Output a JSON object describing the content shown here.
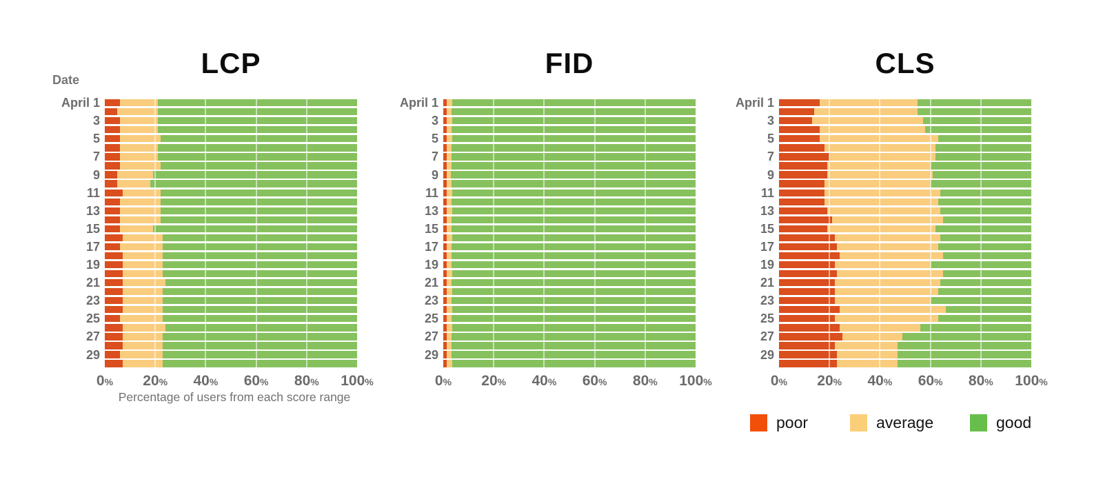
{
  "page": {
    "background": "#ffffff"
  },
  "colors": {
    "bar_poor": "#DB4E1D",
    "bar_average": "#F9CC7E",
    "bar_good": "#86C15E",
    "axis_text": "#6B6B6B",
    "title_text": "#0C0C0C",
    "gridline": "rgba(255,255,255,0.55)"
  },
  "legend": {
    "items": [
      {
        "label": "poor",
        "color": "#F2500A"
      },
      {
        "label": "average",
        "color": "#FBCF79"
      },
      {
        "label": "good",
        "color": "#68BE4B"
      }
    ]
  },
  "chart_data": [
    {
      "type": "bar",
      "orientation": "horizontal",
      "stacked": true,
      "title": "LCP",
      "y_axis_title": "Date",
      "x_label": "Percentage of users from each score range",
      "xlim": [
        0,
        100
      ],
      "x_ticks": [
        "0",
        "20",
        "40",
        "60",
        "80",
        "100"
      ],
      "percent_suffix": "%",
      "gridlines_at": [
        20,
        40,
        60,
        80
      ],
      "series_names": [
        "poor",
        "average",
        "good"
      ],
      "row_schema": [
        "label",
        "poor",
        "average",
        "good"
      ],
      "rows": [
        [
          "April 1",
          6,
          15,
          79
        ],
        [
          "",
          5,
          16,
          79
        ],
        [
          "3",
          6,
          15,
          79
        ],
        [
          "",
          6,
          15,
          79
        ],
        [
          "5",
          6,
          16,
          78
        ],
        [
          "",
          6,
          15,
          79
        ],
        [
          "7",
          6,
          15,
          79
        ],
        [
          "",
          6,
          16,
          78
        ],
        [
          "9",
          5,
          14,
          81
        ],
        [
          "",
          5,
          13,
          82
        ],
        [
          "11",
          7,
          15,
          78
        ],
        [
          "",
          6,
          16,
          78
        ],
        [
          "13",
          6,
          16,
          78
        ],
        [
          "",
          6,
          16,
          78
        ],
        [
          "15",
          6,
          13,
          81
        ],
        [
          "",
          7,
          16,
          77
        ],
        [
          "17",
          6,
          17,
          77
        ],
        [
          "",
          7,
          16,
          77
        ],
        [
          "19",
          7,
          16,
          77
        ],
        [
          "",
          7,
          16,
          77
        ],
        [
          "21",
          7,
          17,
          76
        ],
        [
          "",
          7,
          16,
          77
        ],
        [
          "23",
          7,
          16,
          77
        ],
        [
          "",
          7,
          16,
          77
        ],
        [
          "25",
          6,
          17,
          77
        ],
        [
          "",
          7,
          17,
          76
        ],
        [
          "27",
          7,
          16,
          77
        ],
        [
          "",
          7,
          16,
          77
        ],
        [
          "29",
          6,
          17,
          77
        ],
        [
          "",
          7,
          16,
          77
        ]
      ]
    },
    {
      "type": "bar",
      "orientation": "horizontal",
      "stacked": true,
      "title": "FID",
      "xlim": [
        0,
        100
      ],
      "x_ticks": [
        "0",
        "20",
        "40",
        "60",
        "80",
        "100"
      ],
      "percent_suffix": "%",
      "gridlines_at": [
        20,
        40,
        60,
        80
      ],
      "series_names": [
        "poor",
        "average",
        "good"
      ],
      "row_schema": [
        "label",
        "poor",
        "average",
        "good"
      ],
      "rows": [
        [
          "April 1",
          1.5,
          2,
          96.5
        ],
        [
          "",
          1.3,
          1.9,
          96.8
        ],
        [
          "3",
          1.5,
          2,
          96.5
        ],
        [
          "",
          1.4,
          1.9,
          96.7
        ],
        [
          "5",
          1.5,
          2,
          96.5
        ],
        [
          "",
          1.3,
          2,
          96.7
        ],
        [
          "7",
          1.5,
          1.9,
          96.6
        ],
        [
          "",
          1.4,
          2,
          96.6
        ],
        [
          "9",
          1.3,
          1.8,
          96.9
        ],
        [
          "",
          1.4,
          2,
          96.6
        ],
        [
          "11",
          1.5,
          2,
          96.5
        ],
        [
          "",
          1.4,
          1.9,
          96.7
        ],
        [
          "13",
          1.5,
          2,
          96.5
        ],
        [
          "",
          1.4,
          1.9,
          96.7
        ],
        [
          "15",
          1.3,
          1.9,
          96.8
        ],
        [
          "",
          1.5,
          2,
          96.5
        ],
        [
          "17",
          1.4,
          2,
          96.6
        ],
        [
          "",
          1.5,
          1.9,
          96.6
        ],
        [
          "19",
          1.4,
          2,
          96.6
        ],
        [
          "",
          1.5,
          2,
          96.5
        ],
        [
          "21",
          1.4,
          1.9,
          96.7
        ],
        [
          "",
          1.5,
          2,
          96.5
        ],
        [
          "23",
          1.4,
          1.9,
          96.7
        ],
        [
          "",
          1.5,
          2,
          96.5
        ],
        [
          "25",
          1.3,
          1.9,
          96.8
        ],
        [
          "",
          1.5,
          2,
          96.5
        ],
        [
          "27",
          1.4,
          2,
          96.6
        ],
        [
          "",
          1.5,
          1.9,
          96.6
        ],
        [
          "29",
          1.4,
          2,
          96.6
        ],
        [
          "",
          1.5,
          2,
          96.5
        ]
      ]
    },
    {
      "type": "bar",
      "orientation": "horizontal",
      "stacked": true,
      "title": "CLS",
      "xlim": [
        0,
        100
      ],
      "x_ticks": [
        "0",
        "20",
        "40",
        "60",
        "80",
        "100"
      ],
      "percent_suffix": "%",
      "gridlines_at": [
        20,
        40,
        60,
        80
      ],
      "series_names": [
        "poor",
        "average",
        "good"
      ],
      "row_schema": [
        "label",
        "poor",
        "average",
        "good"
      ],
      "rows": [
        [
          "April 1",
          16,
          39,
          45
        ],
        [
          "",
          14,
          41,
          45
        ],
        [
          "3",
          13,
          44,
          43
        ],
        [
          "",
          16,
          42,
          42
        ],
        [
          "5",
          16,
          47,
          37
        ],
        [
          "",
          18,
          44,
          38
        ],
        [
          "7",
          20,
          42,
          38
        ],
        [
          "",
          19,
          41,
          40
        ],
        [
          "9",
          19,
          42,
          39
        ],
        [
          "",
          18,
          42,
          40
        ],
        [
          "11",
          18,
          46,
          36
        ],
        [
          "",
          18,
          45,
          37
        ],
        [
          "13",
          19,
          45,
          36
        ],
        [
          "",
          21,
          44,
          35
        ],
        [
          "15",
          19,
          43,
          38
        ],
        [
          "",
          22,
          42,
          36
        ],
        [
          "17",
          23,
          40,
          37
        ],
        [
          "",
          24,
          41,
          35
        ],
        [
          "19",
          22,
          38,
          40
        ],
        [
          "",
          23,
          42,
          35
        ],
        [
          "21",
          22,
          42,
          36
        ],
        [
          "",
          22,
          41,
          37
        ],
        [
          "23",
          22,
          38,
          40
        ],
        [
          "",
          24,
          42,
          34
        ],
        [
          "25",
          22,
          41,
          37
        ],
        [
          "",
          24,
          32,
          44
        ],
        [
          "27",
          25,
          24,
          51
        ],
        [
          "",
          22,
          25,
          53
        ],
        [
          "29",
          23,
          24,
          53
        ],
        [
          "",
          23,
          24,
          53
        ]
      ]
    }
  ]
}
